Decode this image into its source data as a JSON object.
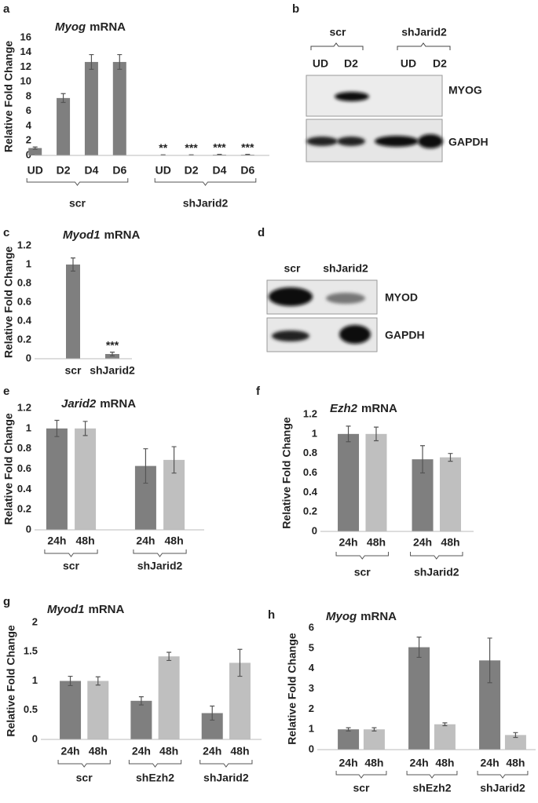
{
  "chart_data": [
    {
      "type": "bar",
      "panel": "a",
      "title": {
        "gene": "Myog",
        "text": "mRNA"
      },
      "ylabel": "Relative Fold Change",
      "groups": [
        "scr",
        "shJarid2"
      ],
      "categories": [
        "UD",
        "D2",
        "D4",
        "D6",
        "UD",
        "D2",
        "D4",
        "D6"
      ],
      "values": [
        1.0,
        7.8,
        12.7,
        12.7,
        0.05,
        0.05,
        0.1,
        0.1
      ],
      "errors": [
        0.15,
        0.6,
        1.0,
        1.0,
        0.03,
        0.03,
        0.05,
        0.05
      ],
      "annotations": [
        null,
        null,
        null,
        null,
        "**",
        "***",
        "***",
        "***"
      ],
      "color": "#7f7f7f",
      "ylim": [
        0,
        16
      ],
      "yticks": [
        0,
        2,
        4,
        6,
        8,
        10,
        12,
        14,
        16
      ]
    },
    {
      "type": "bar",
      "panel": "c",
      "title": {
        "gene": "Myod1",
        "text": "mRNA"
      },
      "ylabel": "Relative Fold Change",
      "categories": [
        "scr",
        "shJarid2"
      ],
      "values": [
        1.0,
        0.05
      ],
      "errors": [
        0.07,
        0.02
      ],
      "annotations": [
        null,
        "***"
      ],
      "color": "#7f7f7f",
      "ylim": [
        0,
        1.2
      ],
      "yticks": [
        0,
        0.2,
        0.4,
        0.6,
        0.8,
        1,
        1.2
      ]
    },
    {
      "type": "bar",
      "panel": "e",
      "title": {
        "gene": "Jarid2",
        "text": "mRNA"
      },
      "ylabel": "Relative Fold Change",
      "groups": [
        "scr",
        "shJarid2"
      ],
      "series": [
        {
          "name": "24h",
          "color": "#7f7f7f",
          "values": [
            1.0,
            0.63
          ],
          "errors": [
            0.08,
            0.17
          ]
        },
        {
          "name": "48h",
          "color": "#bfbfbf",
          "values": [
            1.0,
            0.69
          ],
          "errors": [
            0.07,
            0.13
          ]
        }
      ],
      "ylim": [
        0,
        1.2
      ],
      "yticks": [
        0,
        0.2,
        0.4,
        0.6,
        0.8,
        1,
        1.2
      ]
    },
    {
      "type": "bar",
      "panel": "f",
      "title": {
        "gene": "Ezh2",
        "text": "mRNA"
      },
      "ylabel": "Relative Fold Change",
      "groups": [
        "scr",
        "shJarid2"
      ],
      "series": [
        {
          "name": "24h",
          "color": "#7f7f7f",
          "values": [
            1.0,
            0.74
          ],
          "errors": [
            0.08,
            0.14
          ]
        },
        {
          "name": "48h",
          "color": "#bfbfbf",
          "values": [
            1.0,
            0.76
          ],
          "errors": [
            0.07,
            0.04
          ]
        }
      ],
      "ylim": [
        0,
        1.2
      ],
      "yticks": [
        0,
        0.2,
        0.4,
        0.6,
        0.8,
        1,
        1.2
      ]
    },
    {
      "type": "bar",
      "panel": "g",
      "title": {
        "gene": "Myod1",
        "text": "mRNA"
      },
      "ylabel": "Relative Fold Change",
      "groups": [
        "scr",
        "shEzh2",
        "shJarid2"
      ],
      "series": [
        {
          "name": "24h",
          "color": "#7f7f7f",
          "values": [
            1.0,
            0.66,
            0.45
          ],
          "errors": [
            0.08,
            0.07,
            0.12
          ]
        },
        {
          "name": "48h",
          "color": "#bfbfbf",
          "values": [
            1.0,
            1.42,
            1.31
          ],
          "errors": [
            0.07,
            0.07,
            0.23
          ]
        }
      ],
      "ylim": [
        0,
        2
      ],
      "yticks": [
        0,
        0.5,
        1,
        1.5,
        2
      ]
    },
    {
      "type": "bar",
      "panel": "h",
      "title": {
        "gene": "Myog",
        "text": "mRNA"
      },
      "ylabel": "Relative Fold Change",
      "groups": [
        "scr",
        "shEzh2",
        "shJarid2"
      ],
      "series": [
        {
          "name": "24h",
          "color": "#7f7f7f",
          "values": [
            1.0,
            5.05,
            4.4
          ],
          "errors": [
            0.08,
            0.5,
            1.1
          ]
        },
        {
          "name": "48h",
          "color": "#bfbfbf",
          "values": [
            1.0,
            1.25,
            0.72
          ],
          "errors": [
            0.08,
            0.07,
            0.12
          ]
        }
      ],
      "ylim": [
        0,
        6
      ],
      "yticks": [
        0,
        1,
        2,
        3,
        4,
        5,
        6
      ]
    }
  ],
  "blots": [
    {
      "panel": "b",
      "groups": [
        {
          "name": "scr",
          "lanes": [
            "UD",
            "D2"
          ]
        },
        {
          "name": "shJarid2",
          "lanes": [
            "UD",
            "D2"
          ]
        }
      ],
      "rows": [
        "MYOG",
        "GAPDH"
      ]
    },
    {
      "panel": "d",
      "lanes": [
        "scr",
        "shJarid2"
      ],
      "rows": [
        "MYOD",
        "GAPDH"
      ]
    }
  ]
}
